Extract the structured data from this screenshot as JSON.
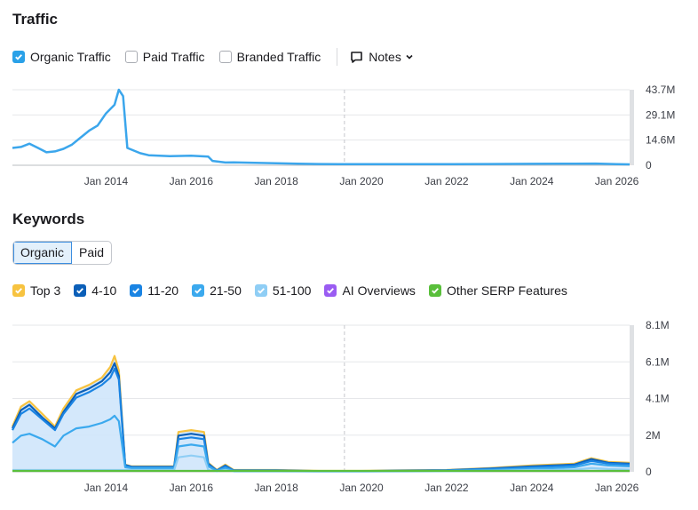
{
  "traffic": {
    "title": "Traffic",
    "filters": [
      {
        "label": "Organic Traffic",
        "checked": true,
        "color": "#2aa1e8"
      },
      {
        "label": "Paid Traffic",
        "checked": false
      },
      {
        "label": "Branded Traffic",
        "checked": false
      }
    ],
    "notes_label": "Notes",
    "y_ticks": [
      "43.7M",
      "29.1M",
      "14.6M",
      "0"
    ]
  },
  "keywords": {
    "title": "Keywords",
    "tabs": [
      {
        "label": "Organic",
        "active": true
      },
      {
        "label": "Paid",
        "active": false
      }
    ],
    "legend": [
      {
        "label": "Top 3",
        "color": "#f7c340"
      },
      {
        "label": "4-10",
        "color": "#0b5fb8"
      },
      {
        "label": "11-20",
        "color": "#1a84e3"
      },
      {
        "label": "21-50",
        "color": "#3ba9ee"
      },
      {
        "label": "51-100",
        "color": "#8fcef5"
      },
      {
        "label": "AI Overviews",
        "color": "#9a5cf2"
      },
      {
        "label": "Other SERP Features",
        "color": "#59bf3b"
      }
    ],
    "y_ticks": [
      "8.1M",
      "6.1M",
      "4.1M",
      "2M",
      "0"
    ]
  },
  "x_ticks": [
    "Jan 2014",
    "Jan 2016",
    "Jan 2018",
    "Jan 2020",
    "Jan 2022",
    "Jan 2024",
    "Jan 2026"
  ],
  "chart_data": [
    {
      "type": "line",
      "title": "Traffic",
      "series": [
        {
          "name": "Organic Traffic",
          "x": [
            2011.8,
            2012.0,
            2012.2,
            2012.4,
            2012.6,
            2012.8,
            2013.0,
            2013.2,
            2013.4,
            2013.6,
            2013.8,
            2014.0,
            2014.2,
            2014.3,
            2014.4,
            2014.5,
            2014.8,
            2015.0,
            2015.5,
            2016.0,
            2016.4,
            2016.5,
            2016.8,
            2017.0,
            2017.5,
            2018.0,
            2018.5,
            2019.0,
            2020.0,
            2021.0,
            2022.0,
            2023.0,
            2024.0,
            2025.0,
            2025.5,
            2026.0,
            2026.3
          ],
          "y": [
            10.0,
            10.6,
            12.5,
            10.0,
            7.5,
            8.0,
            9.5,
            12.0,
            16.0,
            20.0,
            23.0,
            30.0,
            35.0,
            43.7,
            40.0,
            10.0,
            7.0,
            5.8,
            5.3,
            5.5,
            5.0,
            2.5,
            1.6,
            1.7,
            1.4,
            1.2,
            0.9,
            0.7,
            0.6,
            0.6,
            0.6,
            0.7,
            0.8,
            0.9,
            1.0,
            0.6,
            0.5
          ]
        }
      ],
      "ylim": [
        0,
        43.7
      ],
      "y_ticks": [
        "43.7M",
        "29.1M",
        "14.6M",
        "0"
      ]
    },
    {
      "type": "area",
      "title": "Keywords",
      "x": [
        2011.8,
        2012.0,
        2012.2,
        2012.5,
        2012.8,
        2013.0,
        2013.3,
        2013.6,
        2013.9,
        2014.1,
        2014.2,
        2014.3,
        2014.45,
        2014.6,
        2015.0,
        2015.6,
        2015.7,
        2016.0,
        2016.3,
        2016.4,
        2016.6,
        2016.8,
        2017.0,
        2018.0,
        2019.0,
        2020.0,
        2021.0,
        2022.0,
        2023.0,
        2024.0,
        2024.5,
        2025.0,
        2025.4,
        2025.8,
        2026.3
      ],
      "series": [
        {
          "name": "Top 3",
          "values": [
            2.5,
            3.6,
            3.9,
            3.2,
            2.5,
            3.5,
            4.5,
            4.8,
            5.2,
            5.8,
            6.4,
            5.6,
            0.4,
            0.3,
            0.3,
            0.3,
            2.2,
            2.3,
            2.2,
            0.5,
            0.1,
            0.4,
            0.1,
            0.1,
            0.05,
            0.05,
            0.08,
            0.1,
            0.2,
            0.35,
            0.4,
            0.45,
            0.75,
            0.55,
            0.5
          ]
        },
        {
          "name": "4-10",
          "values": [
            2.4,
            3.4,
            3.7,
            3.0,
            2.4,
            3.3,
            4.3,
            4.6,
            5.0,
            5.5,
            6.0,
            5.3,
            0.38,
            0.28,
            0.28,
            0.28,
            2.0,
            2.1,
            2.0,
            0.45,
            0.08,
            0.35,
            0.08,
            0.08,
            0.04,
            0.04,
            0.07,
            0.09,
            0.18,
            0.3,
            0.35,
            0.4,
            0.7,
            0.5,
            0.45
          ]
        },
        {
          "name": "11-20",
          "values": [
            2.3,
            3.2,
            3.5,
            2.9,
            2.3,
            3.2,
            4.1,
            4.4,
            4.8,
            5.2,
            5.7,
            5.1,
            0.35,
            0.25,
            0.25,
            0.25,
            1.8,
            1.9,
            1.8,
            0.4,
            0.07,
            0.3,
            0.07,
            0.07,
            0.03,
            0.03,
            0.06,
            0.08,
            0.15,
            0.25,
            0.3,
            0.35,
            0.6,
            0.45,
            0.4
          ]
        },
        {
          "name": "21-50",
          "values": [
            1.6,
            2.0,
            2.1,
            1.8,
            1.4,
            2.0,
            2.4,
            2.5,
            2.7,
            2.9,
            3.1,
            2.8,
            0.25,
            0.2,
            0.2,
            0.2,
            1.4,
            1.5,
            1.4,
            0.3,
            0.05,
            0.2,
            0.05,
            0.05,
            0.02,
            0.02,
            0.04,
            0.06,
            0.1,
            0.18,
            0.2,
            0.25,
            0.45,
            0.35,
            0.3
          ]
        },
        {
          "name": "51-100",
          "values": [
            0.1,
            0.1,
            0.1,
            0.1,
            0.1,
            0.1,
            0.1,
            0.1,
            0.1,
            0.1,
            0.1,
            0.1,
            0.1,
            0.1,
            0.1,
            0.1,
            0.8,
            0.9,
            0.8,
            0.1,
            0.02,
            0.1,
            0.02,
            0.02,
            0.01,
            0.01,
            0.02,
            0.03,
            0.05,
            0.1,
            0.1,
            0.12,
            0.2,
            0.15,
            0.12
          ]
        },
        {
          "name": "Other SERP Features",
          "values": [
            0.05,
            0.05,
            0.05,
            0.05,
            0.05,
            0.05,
            0.05,
            0.05,
            0.05,
            0.05,
            0.05,
            0.05,
            0.05,
            0.05,
            0.05,
            0.05,
            0.05,
            0.05,
            0.05,
            0.05,
            0.05,
            0.05,
            0.05,
            0.05,
            0.05,
            0.05,
            0.05,
            0.05,
            0.05,
            0.05,
            0.05,
            0.05,
            0.05,
            0.05,
            0.05
          ]
        }
      ],
      "ylim": [
        0,
        8.1
      ],
      "y_ticks": [
        "8.1M",
        "6.1M",
        "4.1M",
        "2M",
        "0"
      ]
    }
  ]
}
